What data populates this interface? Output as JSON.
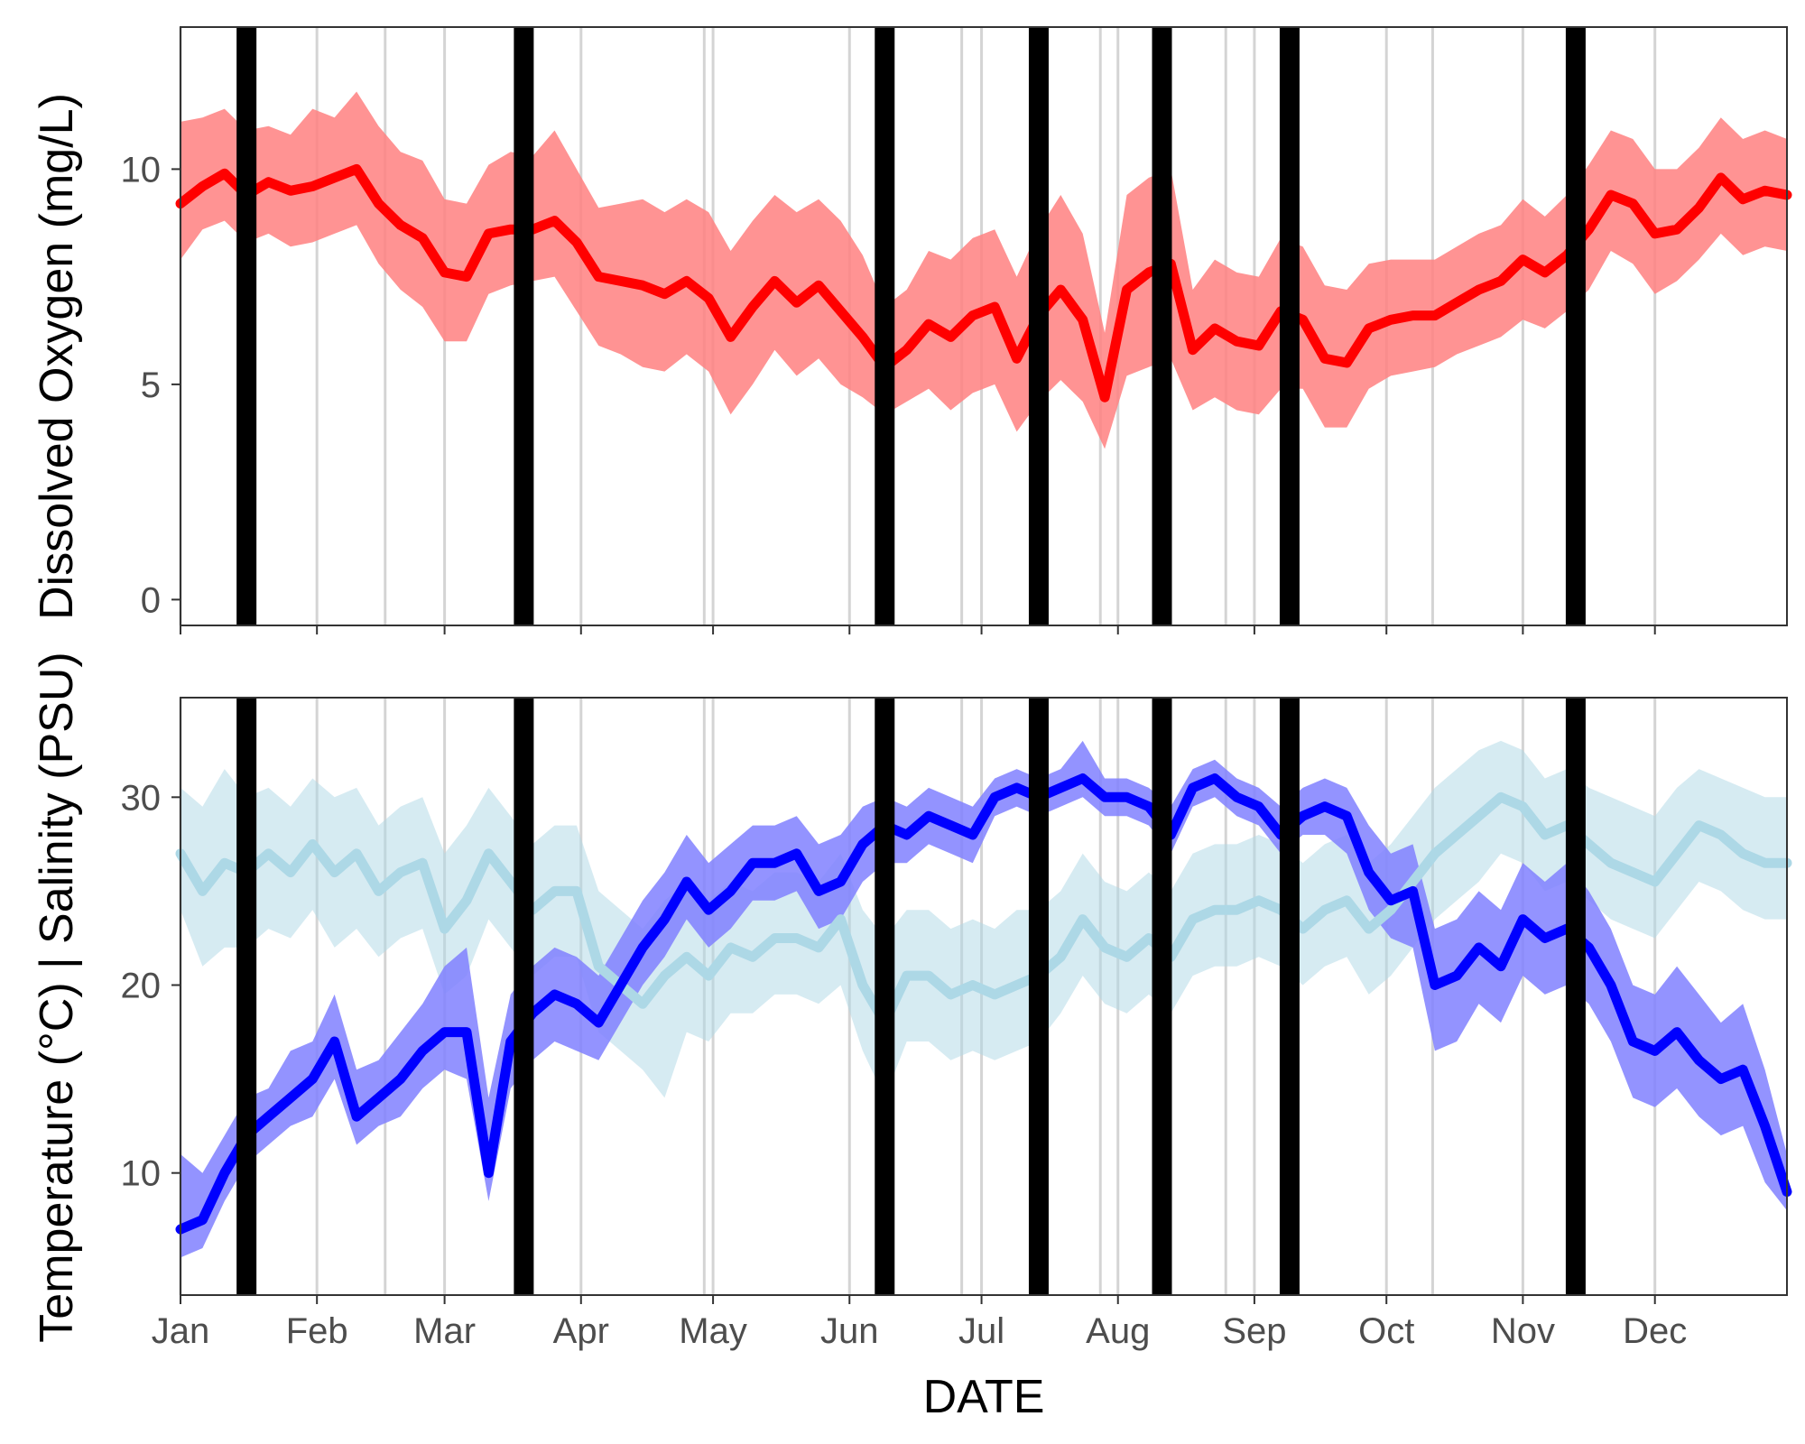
{
  "chart_data": [
    {
      "type": "line",
      "panel": "top",
      "ylabel": "Dissolved Oxygen (mg/L)",
      "ylim": [
        -0.6,
        13.3
      ],
      "yticks": [
        0,
        5,
        10
      ],
      "x_range": [
        "2000-01-01",
        "2000-12-31"
      ],
      "x_ticks": [
        "Jan",
        "Feb",
        "Mar",
        "Apr",
        "May",
        "Jun",
        "Jul",
        "Aug",
        "Sep",
        "Oct",
        "Nov",
        "Dec"
      ],
      "grid": "vertical lines at each month start and between sampling events",
      "legend": "none",
      "series": [
        {
          "color": "#ff0000",
          "band_color": "#ff8080",
          "x": [
            "2000-01-01",
            "2000-01-06",
            "2000-01-11",
            "2000-01-16",
            "2000-01-21",
            "2000-01-26",
            "2000-01-31",
            "2000-02-05",
            "2000-02-10",
            "2000-02-15",
            "2000-02-20",
            "2000-02-25",
            "2000-03-01",
            "2000-03-06",
            "2000-03-11",
            "2000-03-16",
            "2000-03-21",
            "2000-03-26",
            "2000-03-31",
            "2000-04-05",
            "2000-04-10",
            "2000-04-15",
            "2000-04-20",
            "2000-04-25",
            "2000-04-30",
            "2000-05-05",
            "2000-05-10",
            "2000-05-15",
            "2000-05-20",
            "2000-05-25",
            "2000-05-30",
            "2000-06-04",
            "2000-06-09",
            "2000-06-14",
            "2000-06-19",
            "2000-06-24",
            "2000-06-29",
            "2000-07-04",
            "2000-07-09",
            "2000-07-14",
            "2000-07-19",
            "2000-07-24",
            "2000-07-29",
            "2000-08-03",
            "2000-08-08",
            "2000-08-13",
            "2000-08-18",
            "2000-08-23",
            "2000-08-28",
            "2000-09-02",
            "2000-09-07",
            "2000-09-12",
            "2000-09-17",
            "2000-09-22",
            "2000-09-27",
            "2000-10-02",
            "2000-10-07",
            "2000-10-12",
            "2000-10-17",
            "2000-10-22",
            "2000-10-27",
            "2000-11-01",
            "2000-11-06",
            "2000-11-11",
            "2000-11-16",
            "2000-11-21",
            "2000-11-26",
            "2000-12-01",
            "2000-12-06",
            "2000-12-11",
            "2000-12-16",
            "2000-12-21",
            "2000-12-26",
            "2000-12-31"
          ],
          "y": [
            9.2,
            9.6,
            9.9,
            9.4,
            9.7,
            9.5,
            9.6,
            9.8,
            10.0,
            9.2,
            8.7,
            8.4,
            7.6,
            7.5,
            8.5,
            8.6,
            8.6,
            8.8,
            8.3,
            7.5,
            7.4,
            7.3,
            7.1,
            7.4,
            7.0,
            6.1,
            6.8,
            7.4,
            6.9,
            7.3,
            6.7,
            6.1,
            5.4,
            5.8,
            6.4,
            6.1,
            6.6,
            6.8,
            5.6,
            6.6,
            7.2,
            6.5,
            4.7,
            7.2,
            7.6,
            7.8,
            5.8,
            6.3,
            6.0,
            5.9,
            6.7,
            6.5,
            5.6,
            5.5,
            6.3,
            6.5,
            6.6,
            6.6,
            6.9,
            7.2,
            7.4,
            7.9,
            7.6,
            8.0,
            8.6,
            9.4,
            9.2,
            8.5,
            8.6,
            9.1,
            9.8,
            9.3,
            9.5,
            9.4
          ],
          "ymin": [
            7.9,
            8.6,
            8.8,
            8.3,
            8.5,
            8.2,
            8.3,
            8.5,
            8.7,
            7.8,
            7.2,
            6.8,
            6.0,
            6.0,
            7.1,
            7.3,
            7.4,
            7.5,
            6.7,
            5.9,
            5.7,
            5.4,
            5.3,
            5.7,
            5.3,
            4.3,
            5.0,
            5.8,
            5.2,
            5.6,
            5.0,
            4.7,
            4.3,
            4.6,
            4.9,
            4.4,
            4.8,
            5.0,
            3.9,
            4.6,
            5.1,
            4.6,
            3.5,
            5.2,
            5.4,
            5.6,
            4.4,
            4.7,
            4.4,
            4.3,
            4.9,
            4.9,
            4.0,
            4.0,
            4.9,
            5.2,
            5.3,
            5.4,
            5.7,
            5.9,
            6.1,
            6.5,
            6.3,
            6.7,
            7.2,
            8.1,
            7.8,
            7.1,
            7.4,
            7.9,
            8.5,
            8.0,
            8.2,
            8.1
          ],
          "ymax": [
            11.1,
            11.2,
            11.4,
            10.9,
            11.0,
            10.8,
            11.4,
            11.2,
            11.8,
            11.0,
            10.4,
            10.2,
            9.3,
            9.2,
            10.1,
            10.4,
            10.3,
            10.9,
            10.0,
            9.1,
            9.2,
            9.3,
            9.0,
            9.3,
            9.0,
            8.1,
            8.8,
            9.4,
            9.0,
            9.3,
            8.8,
            8.0,
            6.8,
            7.2,
            8.1,
            7.9,
            8.4,
            8.6,
            7.5,
            8.6,
            9.4,
            8.5,
            6.2,
            9.4,
            9.8,
            10.0,
            7.2,
            7.9,
            7.6,
            7.5,
            8.4,
            8.2,
            7.3,
            7.2,
            7.8,
            7.9,
            7.9,
            7.9,
            8.2,
            8.5,
            8.7,
            9.3,
            8.9,
            9.4,
            10.1,
            10.9,
            10.7,
            10.0,
            10.0,
            10.5,
            11.2,
            10.7,
            10.9,
            10.7
          ]
        }
      ]
    },
    {
      "type": "line",
      "panel": "bottom",
      "ylabel": "Temperature (°C) | Salinity (PSU)",
      "xlabel": "DATE",
      "ylim": [
        3.5,
        35.3
      ],
      "yticks": [
        10,
        20,
        30
      ],
      "x_range": [
        "2000-01-01",
        "2000-12-31"
      ],
      "x_ticks": [
        "Jan",
        "Feb",
        "Mar",
        "Apr",
        "May",
        "Jun",
        "Jul",
        "Aug",
        "Sep",
        "Oct",
        "Nov",
        "Dec"
      ],
      "grid": "vertical lines at each month start and between sampling events",
      "legend": "none",
      "series": [
        {
          "color": "#add8e6",
          "band_color": "#add8e6",
          "x": [
            "2000-01-01",
            "2000-01-06",
            "2000-01-11",
            "2000-01-16",
            "2000-01-21",
            "2000-01-26",
            "2000-01-31",
            "2000-02-05",
            "2000-02-10",
            "2000-02-15",
            "2000-02-20",
            "2000-02-25",
            "2000-03-01",
            "2000-03-06",
            "2000-03-11",
            "2000-03-16",
            "2000-03-21",
            "2000-03-26",
            "2000-03-31",
            "2000-04-05",
            "2000-04-10",
            "2000-04-15",
            "2000-04-20",
            "2000-04-25",
            "2000-04-30",
            "2000-05-05",
            "2000-05-10",
            "2000-05-15",
            "2000-05-20",
            "2000-05-25",
            "2000-05-30",
            "2000-06-04",
            "2000-06-09",
            "2000-06-14",
            "2000-06-19",
            "2000-06-24",
            "2000-06-29",
            "2000-07-04",
            "2000-07-09",
            "2000-07-14",
            "2000-07-19",
            "2000-07-24",
            "2000-07-29",
            "2000-08-03",
            "2000-08-08",
            "2000-08-13",
            "2000-08-18",
            "2000-08-23",
            "2000-08-28",
            "2000-09-02",
            "2000-09-07",
            "2000-09-12",
            "2000-09-17",
            "2000-09-22",
            "2000-09-27",
            "2000-10-02",
            "2000-10-07",
            "2000-10-12",
            "2000-10-17",
            "2000-10-22",
            "2000-10-27",
            "2000-11-01",
            "2000-11-06",
            "2000-11-11",
            "2000-11-16",
            "2000-11-21",
            "2000-11-26",
            "2000-12-01",
            "2000-12-06",
            "2000-12-11",
            "2000-12-16",
            "2000-12-21",
            "2000-12-26",
            "2000-12-31"
          ],
          "y": [
            27.0,
            25.0,
            26.5,
            26.0,
            27.0,
            26.0,
            27.5,
            26.0,
            27.0,
            25.0,
            26.0,
            26.5,
            23.0,
            24.5,
            27.0,
            25.5,
            24.0,
            25.0,
            25.0,
            21.0,
            20.0,
            19.0,
            20.5,
            21.5,
            20.5,
            22.0,
            21.5,
            22.5,
            22.5,
            22.0,
            23.5,
            20.0,
            18.0,
            20.5,
            20.5,
            19.5,
            20.0,
            19.5,
            20.0,
            20.5,
            21.5,
            23.5,
            22.0,
            21.5,
            22.5,
            21.5,
            23.5,
            24.0,
            24.0,
            24.5,
            24.0,
            23.0,
            24.0,
            24.5,
            23.0,
            24.0,
            25.5,
            27.0,
            28.0,
            29.0,
            30.0,
            29.5,
            28.0,
            28.5,
            27.5,
            26.5,
            26.0,
            25.5,
            27.0,
            28.5,
            28.0,
            27.0,
            26.5,
            26.5
          ],
          "ymin": [
            24.0,
            21.0,
            22.0,
            22.0,
            23.0,
            22.5,
            24.0,
            22.0,
            23.0,
            21.5,
            22.5,
            23.0,
            19.5,
            20.5,
            23.5,
            22.0,
            20.5,
            21.5,
            21.5,
            17.5,
            16.5,
            15.5,
            14.0,
            17.5,
            17.0,
            18.5,
            18.5,
            19.5,
            19.5,
            19.0,
            20.0,
            16.5,
            14.0,
            17.0,
            17.0,
            16.0,
            16.5,
            16.0,
            16.5,
            17.0,
            18.5,
            20.5,
            19.0,
            18.5,
            19.5,
            18.5,
            20.5,
            21.0,
            21.0,
            21.5,
            21.0,
            20.0,
            21.0,
            21.5,
            19.5,
            20.5,
            22.0,
            23.5,
            24.5,
            25.5,
            27.0,
            26.5,
            25.0,
            25.5,
            24.5,
            23.5,
            23.0,
            22.5,
            24.0,
            25.5,
            25.0,
            24.0,
            23.5,
            23.5
          ],
          "ymax": [
            30.5,
            29.5,
            31.5,
            30.0,
            30.5,
            29.5,
            31.0,
            30.0,
            30.5,
            28.5,
            29.5,
            30.0,
            27.0,
            28.5,
            30.5,
            29.0,
            27.5,
            28.5,
            28.5,
            25.0,
            24.0,
            23.0,
            24.5,
            25.5,
            24.5,
            25.5,
            25.0,
            26.0,
            26.0,
            25.5,
            27.0,
            24.0,
            22.5,
            24.0,
            24.0,
            23.0,
            23.5,
            23.0,
            24.0,
            24.0,
            25.0,
            27.0,
            25.5,
            25.0,
            26.0,
            25.0,
            27.0,
            27.5,
            27.5,
            28.0,
            27.5,
            26.5,
            27.5,
            28.0,
            26.5,
            27.5,
            29.0,
            30.5,
            31.5,
            32.5,
            33.0,
            32.5,
            31.0,
            31.5,
            30.5,
            30.0,
            29.5,
            29.0,
            30.5,
            31.5,
            31.0,
            30.5,
            30.0,
            30.0
          ]
        },
        {
          "color": "#0000ff",
          "band_color": "#8080ff",
          "x": [
            "2000-01-01",
            "2000-01-06",
            "2000-01-11",
            "2000-01-16",
            "2000-01-21",
            "2000-01-26",
            "2000-01-31",
            "2000-02-05",
            "2000-02-10",
            "2000-02-15",
            "2000-02-20",
            "2000-02-25",
            "2000-03-01",
            "2000-03-06",
            "2000-03-11",
            "2000-03-16",
            "2000-03-21",
            "2000-03-26",
            "2000-03-31",
            "2000-04-05",
            "2000-04-10",
            "2000-04-15",
            "2000-04-20",
            "2000-04-25",
            "2000-04-30",
            "2000-05-05",
            "2000-05-10",
            "2000-05-15",
            "2000-05-20",
            "2000-05-25",
            "2000-05-30",
            "2000-06-04",
            "2000-06-09",
            "2000-06-14",
            "2000-06-19",
            "2000-06-24",
            "2000-06-29",
            "2000-07-04",
            "2000-07-09",
            "2000-07-14",
            "2000-07-19",
            "2000-07-24",
            "2000-07-29",
            "2000-08-03",
            "2000-08-08",
            "2000-08-13",
            "2000-08-18",
            "2000-08-23",
            "2000-08-28",
            "2000-09-02",
            "2000-09-07",
            "2000-09-12",
            "2000-09-17",
            "2000-09-22",
            "2000-09-27",
            "2000-10-02",
            "2000-10-07",
            "2000-10-12",
            "2000-10-17",
            "2000-10-22",
            "2000-10-27",
            "2000-11-01",
            "2000-11-06",
            "2000-11-11",
            "2000-11-16",
            "2000-11-21",
            "2000-11-26",
            "2000-12-01",
            "2000-12-06",
            "2000-12-11",
            "2000-12-16",
            "2000-12-21",
            "2000-12-26",
            "2000-12-31"
          ],
          "y": [
            7.0,
            7.5,
            10.0,
            12.0,
            13.0,
            14.0,
            15.0,
            17.0,
            13.0,
            14.0,
            15.0,
            16.5,
            17.5,
            17.5,
            10.0,
            17.0,
            18.5,
            19.5,
            19.0,
            18.0,
            20.0,
            22.0,
            23.5,
            25.5,
            24.0,
            25.0,
            26.5,
            26.5,
            27.0,
            25.0,
            25.5,
            27.5,
            28.5,
            28.0,
            29.0,
            28.5,
            28.0,
            30.0,
            30.5,
            30.0,
            30.5,
            31.0,
            30.0,
            30.0,
            29.5,
            28.0,
            30.5,
            31.0,
            30.0,
            29.5,
            28.0,
            29.0,
            29.5,
            29.0,
            26.0,
            24.5,
            25.0,
            20.0,
            20.5,
            22.0,
            21.0,
            23.5,
            22.5,
            23.0,
            22.0,
            20.0,
            17.0,
            16.5,
            17.5,
            16.0,
            15.0,
            15.5,
            12.5,
            9.0
          ],
          "ymin": [
            5.5,
            6.0,
            8.5,
            10.5,
            11.5,
            12.5,
            13.0,
            15.0,
            11.5,
            12.5,
            13.0,
            14.5,
            15.5,
            15.0,
            8.5,
            14.5,
            16.0,
            17.0,
            16.5,
            16.0,
            18.0,
            20.0,
            21.5,
            23.5,
            22.0,
            23.0,
            24.5,
            24.5,
            25.0,
            23.0,
            23.5,
            25.5,
            26.5,
            26.5,
            27.5,
            27.0,
            26.5,
            29.0,
            29.5,
            29.0,
            29.5,
            30.0,
            29.0,
            29.0,
            28.5,
            27.0,
            29.5,
            30.0,
            29.0,
            28.5,
            27.0,
            28.0,
            28.0,
            27.0,
            24.0,
            22.5,
            22.0,
            16.5,
            17.0,
            19.0,
            18.0,
            20.5,
            19.5,
            20.0,
            19.0,
            17.0,
            14.0,
            13.5,
            14.5,
            13.0,
            12.0,
            12.5,
            9.5,
            8.0
          ],
          "ymax": [
            11.0,
            10.0,
            12.0,
            14.0,
            14.5,
            16.5,
            17.0,
            19.5,
            15.5,
            16.0,
            17.5,
            19.0,
            21.0,
            22.0,
            14.0,
            19.5,
            21.0,
            22.0,
            21.5,
            20.5,
            22.5,
            24.5,
            26.0,
            28.0,
            26.5,
            27.5,
            28.5,
            28.5,
            29.0,
            27.5,
            28.0,
            29.5,
            30.0,
            29.5,
            30.5,
            30.0,
            29.5,
            31.0,
            31.5,
            31.0,
            31.5,
            33.0,
            31.0,
            31.0,
            30.5,
            29.5,
            31.5,
            32.0,
            31.0,
            30.5,
            29.5,
            30.5,
            31.0,
            30.5,
            28.5,
            27.0,
            27.5,
            23.0,
            23.5,
            25.0,
            24.0,
            26.5,
            25.5,
            26.5,
            25.0,
            23.0,
            20.0,
            19.5,
            21.0,
            19.5,
            18.0,
            19.0,
            15.5,
            11.0
          ]
        }
      ]
    }
  ],
  "sampling_dates": [
    "2000-01-16",
    "2000-03-19",
    "2000-06-09",
    "2000-07-14",
    "2000-08-11",
    "2000-09-09",
    "2000-11-13"
  ]
}
